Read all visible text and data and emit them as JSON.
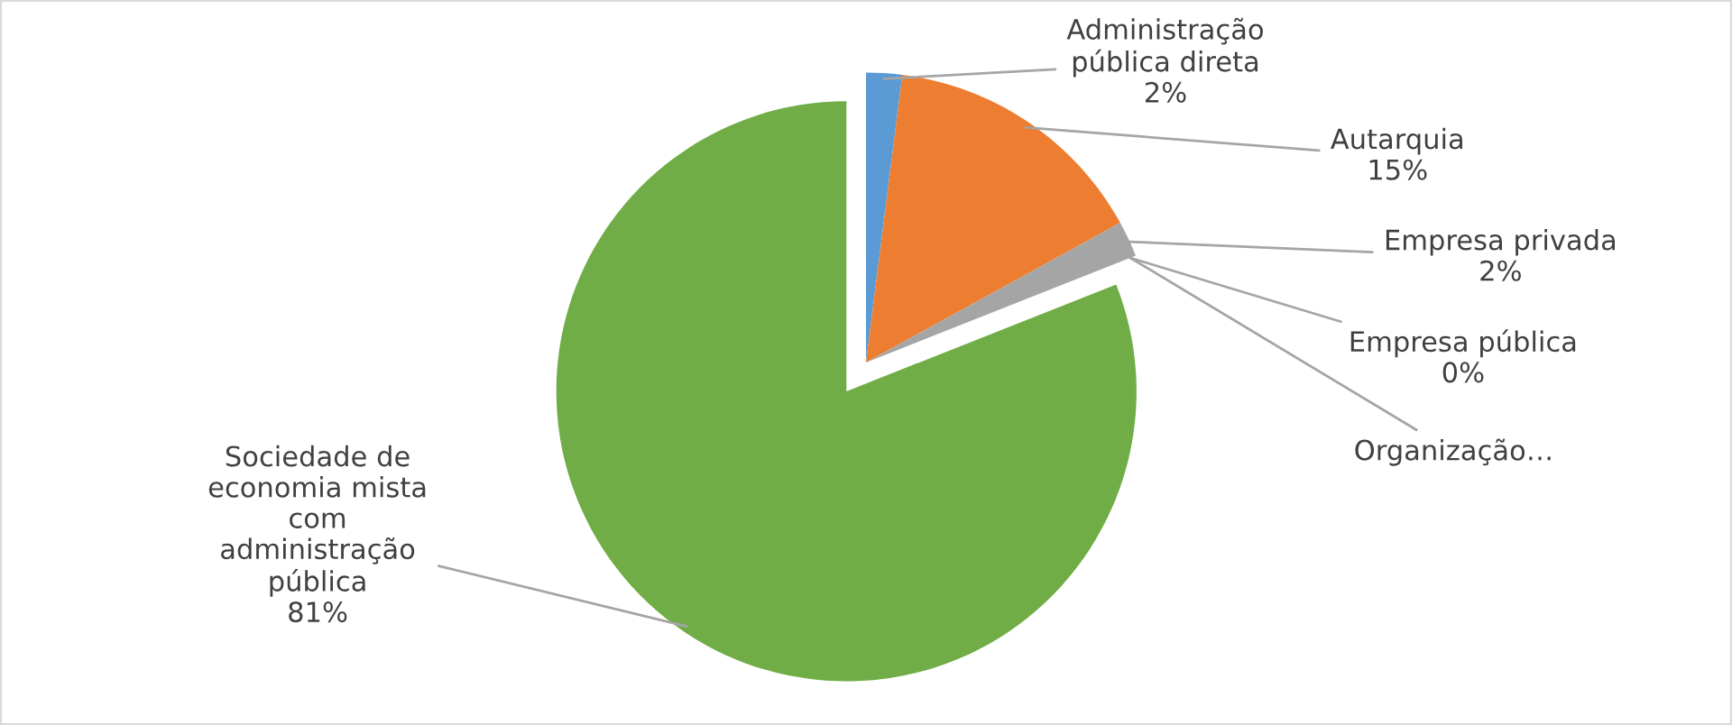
{
  "chart_data": {
    "type": "pie",
    "categories": [
      "Administração pública direta",
      "Autarquia",
      "Empresa privada",
      "Empresa pública",
      "Organização…",
      "Sociedade de economia mista com administração pública"
    ],
    "values": [
      2,
      15,
      2,
      0,
      0,
      81
    ],
    "value_labels": [
      "2%",
      "15%",
      "2%",
      "0%",
      null,
      "81%"
    ],
    "colors": [
      "#5b9bd5",
      "#ed7d31",
      "#a5a5a5",
      "#ffc000",
      "#4472c4",
      "#70ad47"
    ],
    "legend": false
  }
}
